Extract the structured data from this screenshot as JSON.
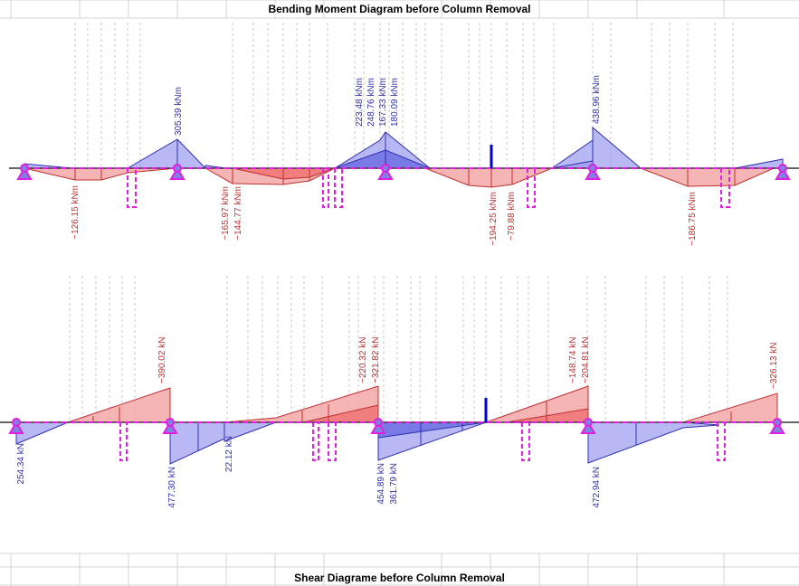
{
  "moment_title": "Bending Moment Diagram before Column Removal",
  "shear_title": "Shear Diagrame before Column Removal",
  "colors": {
    "positive": "#3333cc",
    "negative": "#cc3333",
    "support": "#e020e0",
    "removed_column": "#0000cc"
  },
  "moment_labels": [
    {
      "text": "−126.15 kNm",
      "sign": "neg"
    },
    {
      "text": "305.39 kNm",
      "sign": "pos"
    },
    {
      "text": "−165.97 kNm",
      "sign": "neg"
    },
    {
      "text": "−144.77 kNm",
      "sign": "neg"
    },
    {
      "text": "223.48 kNm",
      "sign": "pos"
    },
    {
      "text": "248.76 kNm",
      "sign": "pos"
    },
    {
      "text": "167.33 kNm",
      "sign": "pos"
    },
    {
      "text": "180.09 kNm",
      "sign": "pos"
    },
    {
      "text": "−194.25 kNm",
      "sign": "neg"
    },
    {
      "text": "−79.88 kNm",
      "sign": "neg"
    },
    {
      "text": "438.96 kNm",
      "sign": "pos"
    },
    {
      "text": "−186.75 kNm",
      "sign": "neg"
    }
  ],
  "shear_labels": [
    {
      "text": "254.34 kN",
      "sign": "pos"
    },
    {
      "text": "−390.02 kN",
      "sign": "neg"
    },
    {
      "text": "477.30 kN",
      "sign": "pos"
    },
    {
      "text": "22.12 kN",
      "sign": "pos"
    },
    {
      "text": "−220.32 kN",
      "sign": "neg"
    },
    {
      "text": "−321.82 kN",
      "sign": "neg"
    },
    {
      "text": "454.89 kN",
      "sign": "pos"
    },
    {
      "text": "361.79 kN",
      "sign": "pos"
    },
    {
      "text": "−148.74 kN",
      "sign": "neg"
    },
    {
      "text": "−204.81 kN",
      "sign": "neg"
    },
    {
      "text": "472.94 kN",
      "sign": "pos"
    },
    {
      "text": "−326.13 kN",
      "sign": "neg"
    }
  ]
}
